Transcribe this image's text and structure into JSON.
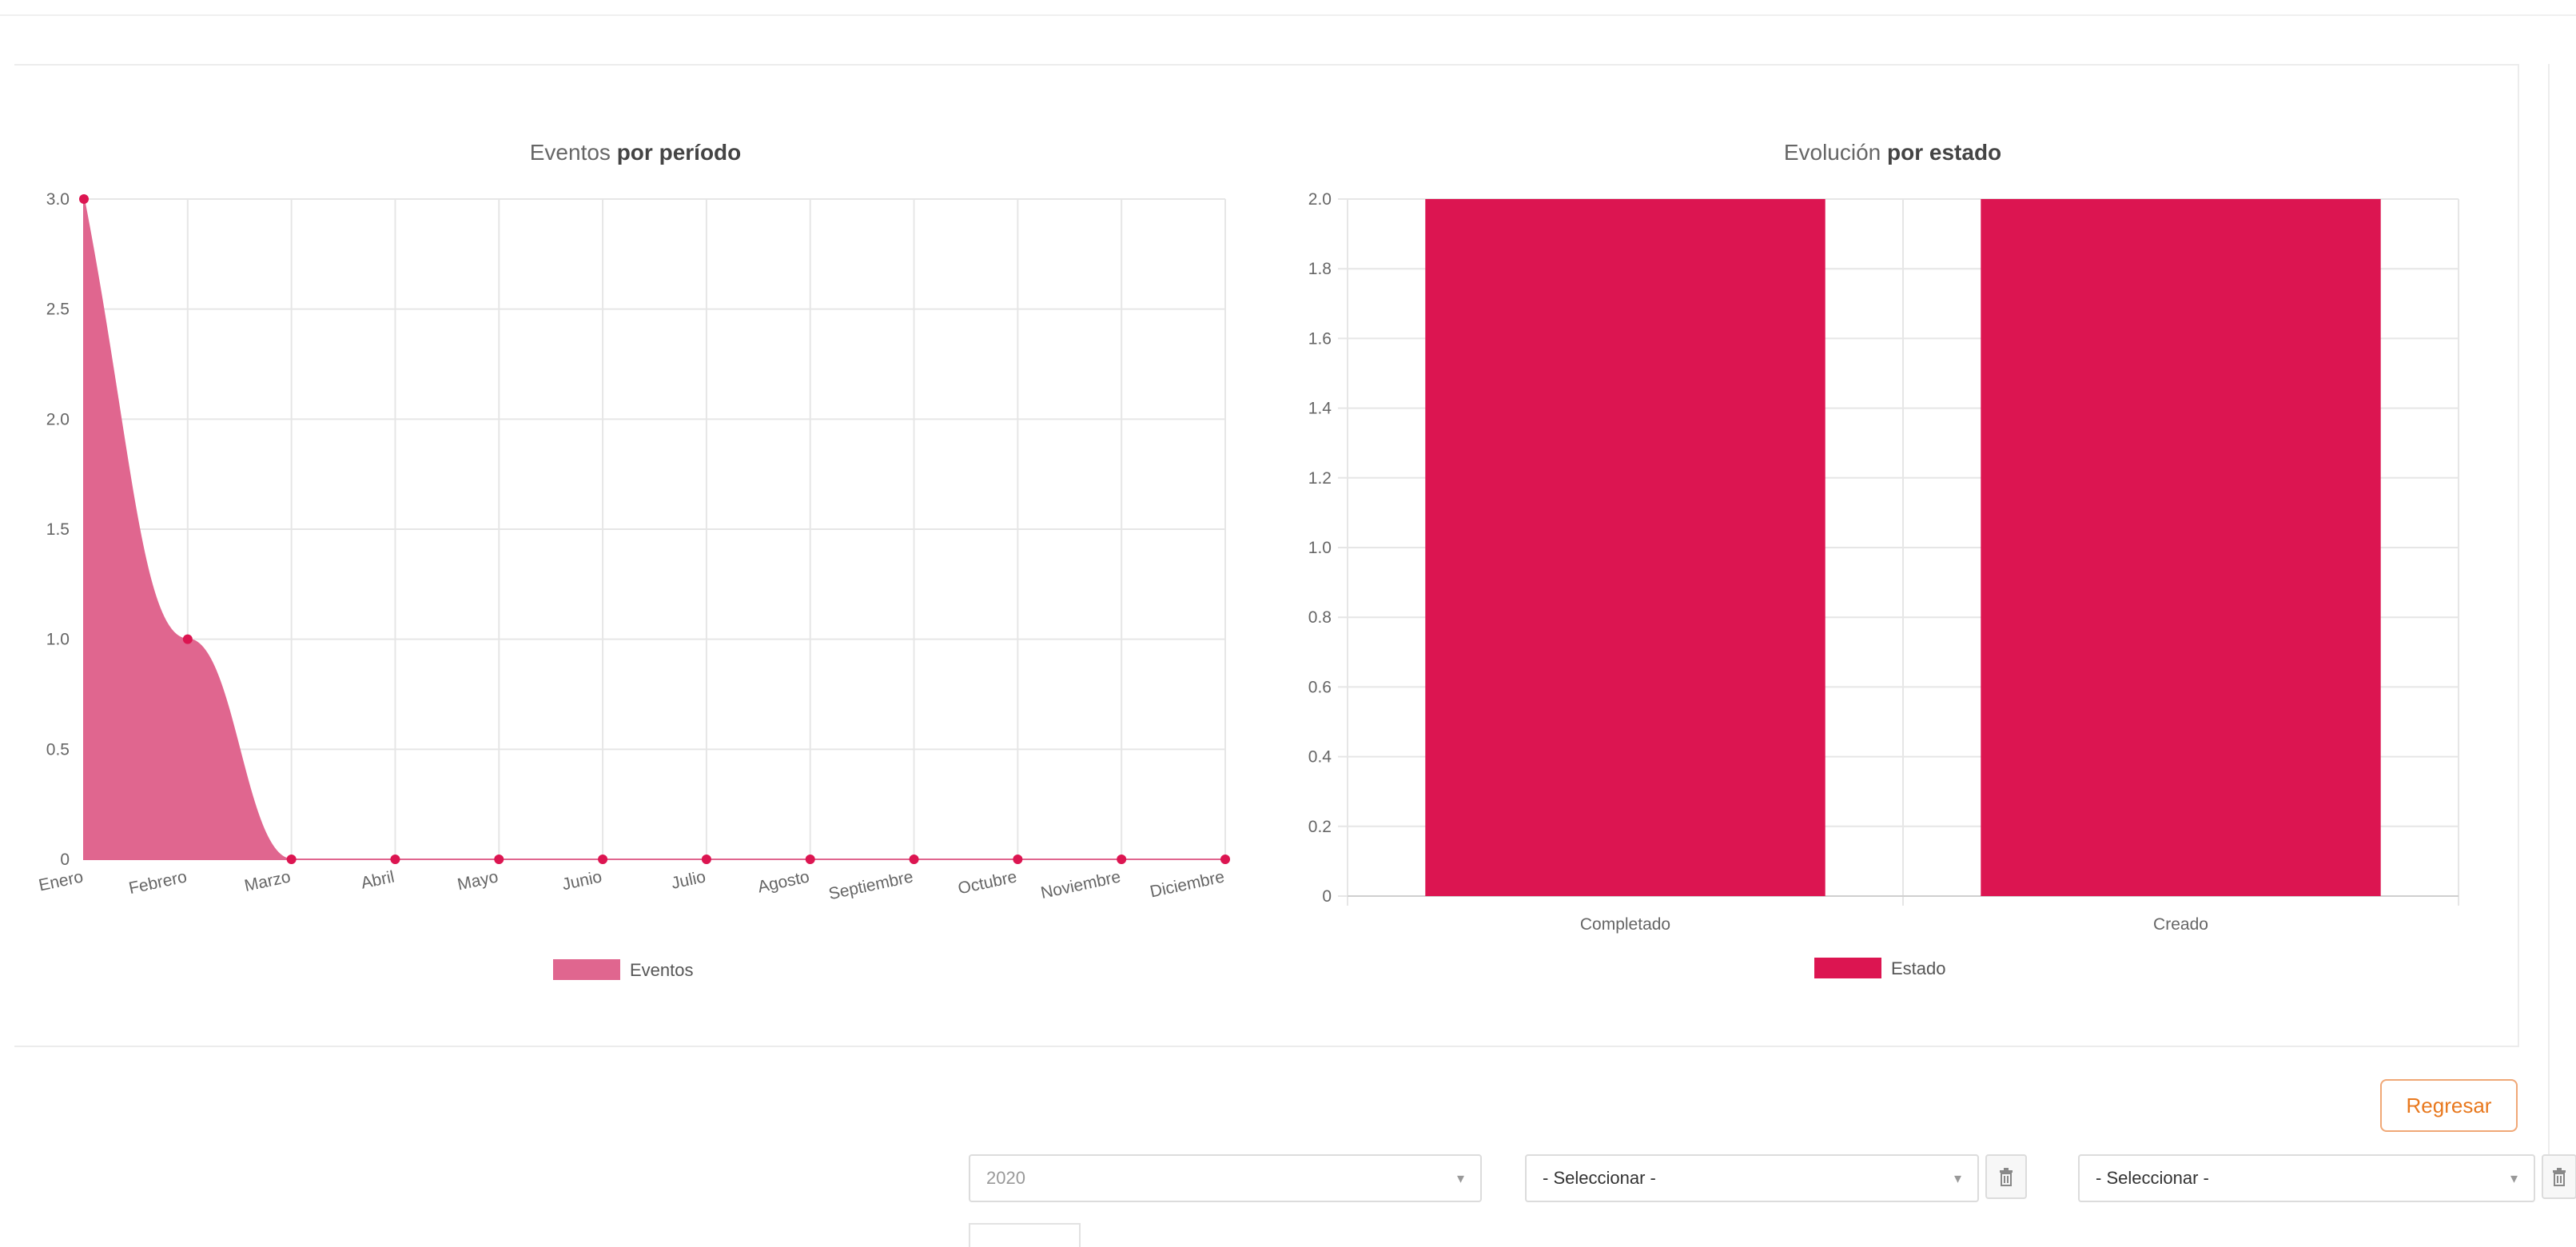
{
  "colors": {
    "area_fill": "#e0668f",
    "line_point": "#dc1551",
    "bar_fill": "#dc1551",
    "button_accent": "#e8791f"
  },
  "chart_data": [
    {
      "type": "area",
      "title_normal": "Eventos",
      "title_bold": "por período",
      "categories": [
        "Enero",
        "Febrero",
        "Marzo",
        "Abril",
        "Mayo",
        "Junio",
        "Julio",
        "Agosto",
        "Septiembre",
        "Octubre",
        "Noviembre",
        "Diciembre"
      ],
      "series": [
        {
          "name": "Eventos",
          "values": [
            3,
            1,
            0,
            0,
            0,
            0,
            0,
            0,
            0,
            0,
            0,
            0
          ]
        }
      ],
      "ylim": [
        0,
        3
      ],
      "yticks": [
        "0",
        "0.5",
        "1.0",
        "1.5",
        "2.0",
        "2.5",
        "3.0"
      ],
      "grid": true,
      "legend_position": "bottom"
    },
    {
      "type": "bar",
      "title_normal": "Evolución",
      "title_bold": "por estado",
      "categories": [
        "Completado",
        "Creado"
      ],
      "series": [
        {
          "name": "Estado",
          "values": [
            2,
            2
          ]
        }
      ],
      "ylim": [
        0,
        2
      ],
      "yticks": [
        "0",
        "0.2",
        "0.4",
        "0.6",
        "0.8",
        "1.0",
        "1.2",
        "1.4",
        "1.6",
        "1.8",
        "2.0"
      ],
      "grid": true,
      "legend_position": "bottom"
    }
  ],
  "actions": {
    "back_label": "Regresar"
  },
  "filters": {
    "year": {
      "value": "2020",
      "caret": "▾"
    },
    "select_1": {
      "value": "- Seleccionar -",
      "caret": "▾"
    },
    "select_2": {
      "value": "- Seleccionar -",
      "caret": "▾"
    },
    "trash_icon": "trash-icon"
  }
}
